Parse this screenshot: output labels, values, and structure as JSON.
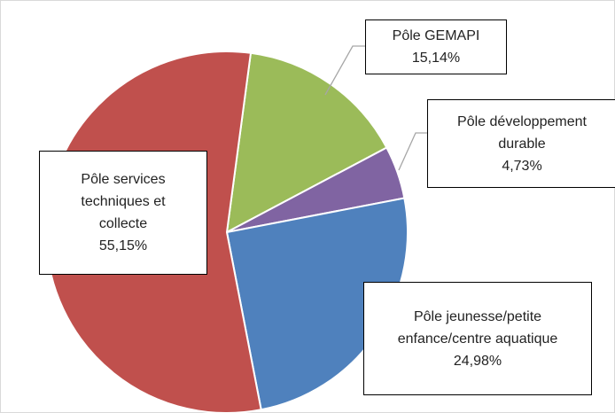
{
  "chart_data": {
    "type": "pie",
    "categories": [
      "Pôle GEMAPI",
      "Pôle développement durable",
      "Pôle jeunesse/petite enfance/centre aquatique",
      "Pôle services techniques et collecte"
    ],
    "values": [
      15.14,
      4.73,
      24.98,
      55.15
    ],
    "value_labels": [
      "15,14%",
      "4,73%",
      "24,98%",
      "55,15%"
    ],
    "colors": [
      "#9bbb59",
      "#8064a2",
      "#4f81bd",
      "#c0504d"
    ]
  }
}
